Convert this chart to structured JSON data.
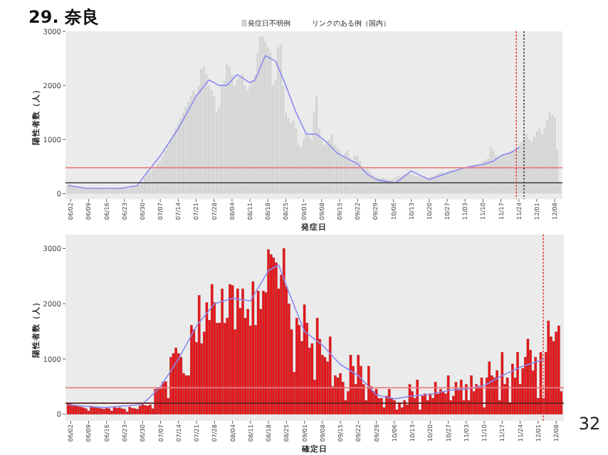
{
  "chart_data": [
    {
      "type": "bar",
      "title": "29. 奈良",
      "xlabel": "発症日",
      "ylabel": "陽性者数（人）",
      "legend": "top",
      "annotations": [
        "リンクのある例（国内）"
      ],
      "x": [
        "--06-01",
        "--06-02",
        "--06-03",
        "--06-04",
        "--06-05",
        "--06-06",
        "--06-07",
        "--06-08",
        "--06-09",
        "--06-10",
        "--06-11",
        "--06-12",
        "--06-13",
        "--06-14",
        "--06-15",
        "--06-16",
        "--06-17",
        "--06-18",
        "--06-19",
        "--06-20",
        "--06-21",
        "--06-22",
        "--06-23",
        "--06-24",
        "--06-25",
        "--06-26",
        "--06-27",
        "--06-28",
        "--06-29",
        "--06-30",
        "--07-01",
        "--07-02",
        "--07-03",
        "--07-04",
        "--07-05",
        "--07-06",
        "--07-07",
        "--07-08",
        "--07-09",
        "--07-10",
        "--07-11",
        "--07-12",
        "--07-13",
        "--07-14",
        "--07-15",
        "--07-16",
        "--07-17",
        "--07-18",
        "--07-19",
        "--07-20",
        "--07-21",
        "--07-22",
        "--07-23",
        "--07-24",
        "--07-25",
        "--07-26",
        "--07-27",
        "--07-28",
        "--07-29",
        "--07-30",
        "--07-31",
        "--08-01",
        "--08-02",
        "--08-03",
        "--08-04",
        "--08-05",
        "--08-06",
        "--08-07",
        "--08-08",
        "--08-09",
        "--08-10",
        "--08-11",
        "--08-12",
        "--08-13",
        "--08-14",
        "--08-15",
        "--08-16",
        "--08-17",
        "--08-18",
        "--08-19",
        "--08-20",
        "--08-21",
        "--08-22",
        "--08-23",
        "--08-24",
        "--08-25",
        "--08-26",
        "--08-27",
        "--08-28",
        "--08-29",
        "--08-30",
        "--08-31",
        "--09-01",
        "--09-02",
        "--09-03",
        "--09-04",
        "--09-05",
        "--09-06",
        "--09-07",
        "--09-08",
        "--09-09",
        "--09-10",
        "--09-11",
        "--09-12",
        "--09-13",
        "--09-14",
        "--09-15",
        "--09-16",
        "--09-17",
        "--09-18",
        "--09-19",
        "--09-20",
        "--09-21",
        "--09-22",
        "--09-23",
        "--09-24",
        "--09-25",
        "--09-26",
        "--09-27",
        "--09-28",
        "--09-29",
        "--09-30",
        "--10-01",
        "--10-02",
        "--10-03",
        "--10-04",
        "--10-05",
        "--10-06",
        "--10-07",
        "--10-08",
        "--10-09",
        "--10-10",
        "--10-11",
        "--10-12",
        "--10-13",
        "--10-14",
        "--10-15",
        "--10-16",
        "--10-17",
        "--10-18",
        "--10-19",
        "--10-20",
        "--10-21",
        "--10-22",
        "--10-23",
        "--10-24",
        "--10-25",
        "--10-26",
        "--10-27",
        "--10-28",
        "--10-29",
        "--10-30",
        "--10-31",
        "--11-01",
        "--11-02",
        "--11-03",
        "--11-04",
        "--11-05",
        "--11-06",
        "--11-07",
        "--11-08",
        "--11-09",
        "--11-10",
        "--11-11",
        "--11-12",
        "--11-13",
        "--11-14",
        "--11-15",
        "--11-16",
        "--11-17",
        "--11-18",
        "--11-19",
        "--11-20",
        "--11-21",
        "--11-22",
        "--11-23",
        "--11-24",
        "--11-25",
        "--11-26",
        "--11-27",
        "--11-28",
        "--11-29",
        "--11-30",
        "--12-01",
        "--12-02",
        "--12-03",
        "--12-04",
        "--12-05",
        "--12-06",
        "--12-07",
        "--12-08",
        "--12-09",
        "--12-10"
      ],
      "series": [
        {
          "name": "発症日不明例",
          "color": "#d4d4d4",
          "values": [
            160,
            170,
            150,
            140,
            130,
            120,
            110,
            110,
            100,
            100,
            90,
            100,
            110,
            100,
            90,
            80,
            90,
            100,
            100,
            90,
            100,
            110,
            100,
            90,
            100,
            120,
            130,
            150,
            160,
            200,
            300,
            350,
            400,
            450,
            500,
            550,
            600,
            700,
            800,
            900,
            1000,
            1100,
            1200,
            1300,
            1400,
            1500,
            1600,
            1700,
            1800,
            1900,
            1850,
            2000,
            2300,
            2350,
            2200,
            2000,
            1900,
            1800,
            1500,
            1600,
            2000,
            2100,
            2400,
            2350,
            2200,
            2000,
            2100,
            2150,
            2200,
            2000,
            1900,
            2000,
            2100,
            2200,
            2600,
            2900,
            2900,
            2800,
            2700,
            2600,
            2000,
            2100,
            2700,
            2750,
            2000,
            1500,
            1400,
            1300,
            1350,
            1200,
            900,
            850,
            1000,
            1100,
            1050,
            1000,
            1500,
            1800,
            1200,
            1000,
            900,
            950,
            1000,
            1100,
            900,
            850,
            800,
            700,
            750,
            800,
            650,
            600,
            700,
            700,
            600,
            500,
            450,
            450,
            400,
            350,
            300,
            300,
            280,
            300,
            280,
            250,
            260,
            270,
            300,
            330,
            320,
            350,
            370,
            380,
            350,
            340,
            330,
            320,
            300,
            310,
            300,
            290,
            320,
            340,
            360,
            380,
            400,
            380,
            400,
            420,
            430,
            410,
            450,
            450,
            460,
            480,
            470,
            500,
            520,
            550,
            540,
            560,
            600,
            620,
            650,
            850,
            800,
            700,
            650,
            700,
            720,
            750,
            760,
            800,
            780,
            820,
            900,
            950,
            1000,
            1100,
            1000,
            950,
            1050,
            1150,
            1200,
            1100,
            1200,
            1350,
            1500,
            1450,
            1400,
            800,
            200
          ]
        },
        {
          "type": "line",
          "color": "#8a8af0",
          "x": [
            "--06-01",
            "--06-08",
            "--06-15",
            "--06-22",
            "--06-28",
            "--07-02",
            "--07-07",
            "--07-14",
            "--07-21",
            "--07-26",
            "--07-30",
            "--08-02",
            "--08-06",
            "--08-11",
            "--08-13",
            "--08-17",
            "--08-21",
            "--08-25",
            "--08-29",
            "--09-02",
            "--09-06",
            "--09-10",
            "--09-14",
            "--09-18",
            "--09-22",
            "--09-26",
            "--09-30",
            "--10-04",
            "--10-07",
            "--10-13",
            "--10-20",
            "--10-27",
            "--11-03",
            "--11-10",
            "--11-14",
            "--11-17",
            "--11-21",
            "--11-24"
          ],
          "values": [
            150,
            100,
            100,
            100,
            150,
            400,
            700,
            1200,
            1800,
            2100,
            2000,
            2000,
            2200,
            2050,
            2100,
            2550,
            2450,
            2000,
            1500,
            1100,
            1100,
            950,
            750,
            650,
            550,
            350,
            250,
            220,
            200,
            420,
            260,
            380,
            480,
            540,
            600,
            700,
            760,
            850
          ]
        }
      ],
      "xlim": [
        "--05-31",
        "--12-11"
      ],
      "ylim": [
        -100,
        3000
      ],
      "yticks": [
        0,
        1000,
        2000,
        3000
      ],
      "xticks": [
        {
          "value": "--06-02",
          "label": "06/02"
        },
        {
          "value": "--06-09",
          "label": "06/09"
        },
        {
          "value": "--06-16",
          "label": "06/16"
        },
        {
          "value": "--06-23",
          "label": "06/23"
        },
        {
          "value": "--06-30",
          "label": "06/30"
        },
        {
          "value": "--07-07",
          "label": "07/07"
        },
        {
          "value": "--07-14",
          "label": "07/14"
        },
        {
          "value": "--07-21",
          "label": "07/21"
        },
        {
          "value": "--07-28",
          "label": "07/28"
        },
        {
          "value": "--08-04",
          "label": "08/04"
        },
        {
          "value": "--08-11",
          "label": "08/11"
        },
        {
          "value": "--08-18",
          "label": "08/18"
        },
        {
          "value": "--08-25",
          "label": "08/25"
        },
        {
          "value": "--09-01",
          "label": "09/01"
        },
        {
          "value": "--09-08",
          "label": "09/08"
        },
        {
          "value": "--09-15",
          "label": "09/15"
        },
        {
          "value": "--09-22",
          "label": "09/22"
        },
        {
          "value": "--09-29",
          "label": "09/29"
        },
        {
          "value": "--10-06",
          "label": "10/06"
        },
        {
          "value": "--10-13",
          "label": "10/13"
        },
        {
          "value": "--10-20",
          "label": "10/20"
        },
        {
          "value": "--10-27",
          "label": "10/27"
        },
        {
          "value": "--11-03",
          "label": "11/03"
        },
        {
          "value": "--11-10",
          "label": "11/10"
        },
        {
          "value": "--11-17",
          "label": "11/17"
        },
        {
          "value": "--11-24",
          "label": "11/24"
        },
        {
          "value": "--12-01",
          "label": "12/01"
        },
        {
          "value": "--12-08",
          "label": "12/08"
        }
      ],
      "ref_lines": [
        {
          "axis": "y",
          "value": 480,
          "color": "#e88080",
          "line_style": "solid"
        },
        {
          "axis": "y",
          "value": 200,
          "color": "#555555",
          "line_style": "solid"
        },
        {
          "axis": "x",
          "value": "--11-23",
          "color": "#e83030",
          "line_style": "dotted"
        },
        {
          "axis": "x",
          "value": "--11-26",
          "color": "#333333",
          "line_style": "dotted"
        }
      ]
    },
    {
      "type": "bar",
      "xlabel": "確定日",
      "ylabel": "陽性者数（人）",
      "annotations": [
        "32"
      ],
      "x": [
        "--06-01",
        "--06-02",
        "--06-03",
        "--06-04",
        "--06-05",
        "--06-06",
        "--06-07",
        "--06-08",
        "--06-09",
        "--06-10",
        "--06-11",
        "--06-12",
        "--06-13",
        "--06-14",
        "--06-15",
        "--06-16",
        "--06-17",
        "--06-18",
        "--06-19",
        "--06-20",
        "--06-21",
        "--06-22",
        "--06-23",
        "--06-24",
        "--06-25",
        "--06-26",
        "--06-27",
        "--06-28",
        "--06-29",
        "--06-30",
        "--07-01",
        "--07-02",
        "--07-03",
        "--07-04",
        "--07-05",
        "--07-06",
        "--07-07",
        "--07-08",
        "--07-09",
        "--07-10",
        "--07-11",
        "--07-12",
        "--07-13",
        "--07-14",
        "--07-15",
        "--07-16",
        "--07-17",
        "--07-18",
        "--07-19",
        "--07-20",
        "--07-21",
        "--07-22",
        "--07-23",
        "--07-24",
        "--07-25",
        "--07-26",
        "--07-27",
        "--07-28",
        "--07-29",
        "--07-30",
        "--07-31",
        "--08-01",
        "--08-02",
        "--08-03",
        "--08-04",
        "--08-05",
        "--08-06",
        "--08-07",
        "--08-08",
        "--08-09",
        "--08-10",
        "--08-11",
        "--08-12",
        "--08-13",
        "--08-14",
        "--08-15",
        "--08-16",
        "--08-17",
        "--08-18",
        "--08-19",
        "--08-20",
        "--08-21",
        "--08-22",
        "--08-23",
        "--08-24",
        "--08-25",
        "--08-26",
        "--08-27",
        "--08-28",
        "--08-29",
        "--08-30",
        "--08-31",
        "--09-01",
        "--09-02",
        "--09-03",
        "--09-04",
        "--09-05",
        "--09-06",
        "--09-07",
        "--09-08",
        "--09-09",
        "--09-10",
        "--09-11",
        "--09-12",
        "--09-13",
        "--09-14",
        "--09-15",
        "--09-16",
        "--09-17",
        "--09-18",
        "--09-19",
        "--09-20",
        "--09-21",
        "--09-22",
        "--09-23",
        "--09-24",
        "--09-25",
        "--09-26",
        "--09-27",
        "--09-28",
        "--09-29",
        "--09-30",
        "--10-01",
        "--10-02",
        "--10-03",
        "--10-04",
        "--10-05",
        "--10-06",
        "--10-07",
        "--10-08",
        "--10-09",
        "--10-10",
        "--10-11",
        "--10-12",
        "--10-13",
        "--10-14",
        "--10-15",
        "--10-16",
        "--10-17",
        "--10-18",
        "--10-19",
        "--10-20",
        "--10-21",
        "--10-22",
        "--10-23",
        "--10-24",
        "--10-25",
        "--10-26",
        "--10-27",
        "--10-28",
        "--10-29",
        "--10-30",
        "--10-31",
        "--11-01",
        "--11-02",
        "--11-03",
        "--11-04",
        "--11-05",
        "--11-06",
        "--11-07",
        "--11-08",
        "--11-09",
        "--11-10",
        "--11-11",
        "--11-12",
        "--11-13",
        "--11-14",
        "--11-15",
        "--11-16",
        "--11-17",
        "--11-18",
        "--11-19",
        "--11-20",
        "--11-21",
        "--11-22",
        "--11-23",
        "--11-24",
        "--11-25",
        "--11-26",
        "--11-27",
        "--11-28",
        "--11-29",
        "--11-30",
        "--12-01",
        "--12-02",
        "--12-03",
        "--12-04",
        "--12-05",
        "--12-06",
        "--12-07",
        "--12-08",
        "--12-09",
        "--12-10"
      ],
      "series": [
        {
          "color": "#e8161b",
          "values": [
            200,
            180,
            170,
            150,
            140,
            130,
            120,
            100,
            60,
            150,
            130,
            120,
            110,
            100,
            90,
            120,
            100,
            60,
            130,
            110,
            120,
            100,
            90,
            40,
            130,
            110,
            100,
            90,
            150,
            180,
            160,
            150,
            170,
            100,
            450,
            480,
            460,
            580,
            590,
            290,
            1030,
            1100,
            1200,
            1100,
            1030,
            740,
            700,
            700,
            1610,
            1530,
            1300,
            2150,
            1280,
            1490,
            2020,
            1700,
            2350,
            2020,
            1650,
            1650,
            2270,
            1650,
            1740,
            2350,
            2330,
            1530,
            2270,
            1920,
            2270,
            1740,
            1900,
            1600,
            2400,
            1610,
            2230,
            1900,
            2230,
            2200,
            2980,
            2890,
            2830,
            2740,
            2270,
            2520,
            3000,
            2310,
            2000,
            1530,
            760,
            1740,
            1610,
            1320,
            1980,
            1650,
            1200,
            1280,
            620,
            1740,
            1360,
            1070,
            1030,
            950,
            1400,
            500,
            700,
            660,
            740,
            580,
            250,
            410,
            1070,
            870,
            540,
            1070,
            870,
            540,
            250,
            870,
            500,
            410,
            450,
            290,
            290,
            120,
            330,
            450,
            290,
            250,
            80,
            210,
            120,
            250,
            170,
            540,
            410,
            290,
            620,
            80,
            330,
            370,
            250,
            370,
            290,
            580,
            370,
            450,
            410,
            370,
            700,
            250,
            330,
            580,
            450,
            620,
            250,
            540,
            250,
            700,
            410,
            540,
            500,
            660,
            120,
            660,
            950,
            700,
            660,
            790,
            250,
            1120,
            540,
            660,
            210,
            910,
            660,
            1120,
            540,
            830,
            1030,
            1360,
            1160,
            790,
            1030,
            290,
            1120,
            290,
            1120,
            1690,
            1400,
            1320,
            1490,
            1600,
            410
          ]
        },
        {
          "type": "line",
          "color": "#8a8af0",
          "x": [
            "--06-01",
            "--06-15",
            "--06-30",
            "--07-07",
            "--07-14",
            "--07-21",
            "--07-28",
            "--08-04",
            "--08-11",
            "--08-18",
            "--08-22",
            "--08-26",
            "--09-01",
            "--09-08",
            "--09-15",
            "--09-22",
            "--09-29",
            "--10-06",
            "--10-13",
            "--10-20",
            "--10-27",
            "--11-03",
            "--11-10",
            "--11-17",
            "--11-24",
            "--12-03"
          ],
          "values": [
            170,
            120,
            180,
            500,
            1000,
            1600,
            2000,
            2100,
            2050,
            2600,
            2700,
            2200,
            1500,
            1250,
            900,
            700,
            350,
            280,
            330,
            360,
            430,
            460,
            520,
            700,
            850,
            990
          ]
        }
      ],
      "xlim": [
        "--05-31",
        "--12-11"
      ],
      "ylim": [
        -120,
        3250
      ],
      "yticks": [
        0,
        1000,
        2000,
        3000
      ],
      "xticks": [
        {
          "value": "--06-02",
          "label": "06/02"
        },
        {
          "value": "--06-09",
          "label": "06/09"
        },
        {
          "value": "--06-16",
          "label": "06/16"
        },
        {
          "value": "--06-23",
          "label": "06/23"
        },
        {
          "value": "--06-30",
          "label": "06/30"
        },
        {
          "value": "--07-07",
          "label": "07/07"
        },
        {
          "value": "--07-14",
          "label": "07/14"
        },
        {
          "value": "--07-21",
          "label": "07/21"
        },
        {
          "value": "--07-28",
          "label": "07/28"
        },
        {
          "value": "--08-04",
          "label": "08/04"
        },
        {
          "value": "--08-11",
          "label": "08/11"
        },
        {
          "value": "--08-18",
          "label": "08/18"
        },
        {
          "value": "--08-25",
          "label": "08/25"
        },
        {
          "value": "--09-01",
          "label": "09/01"
        },
        {
          "value": "--09-08",
          "label": "09/08"
        },
        {
          "value": "--09-15",
          "label": "09/15"
        },
        {
          "value": "--09-22",
          "label": "09/22"
        },
        {
          "value": "--09-29",
          "label": "09/29"
        },
        {
          "value": "--10-06",
          "label": "10/06"
        },
        {
          "value": "--10-13",
          "label": "10/13"
        },
        {
          "value": "--10-20",
          "label": "10/20"
        },
        {
          "value": "--10-27",
          "label": "10/27"
        },
        {
          "value": "--11-03",
          "label": "11/03"
        },
        {
          "value": "--11-10",
          "label": "11/10"
        },
        {
          "value": "--11-17",
          "label": "11/17"
        },
        {
          "value": "--11-24",
          "label": "11/24"
        },
        {
          "value": "--12-01",
          "label": "12/01"
        },
        {
          "value": "--12-08",
          "label": "12/08"
        }
      ],
      "ref_lines": [
        {
          "axis": "y",
          "value": 480,
          "color": "#e88080",
          "line_style": "solid"
        },
        {
          "axis": "y",
          "value": 200,
          "color": "#5a2020",
          "line_style": "solid"
        },
        {
          "axis": "x",
          "value": "--12-03",
          "color": "#e83030",
          "line_style": "dotted"
        }
      ]
    }
  ]
}
